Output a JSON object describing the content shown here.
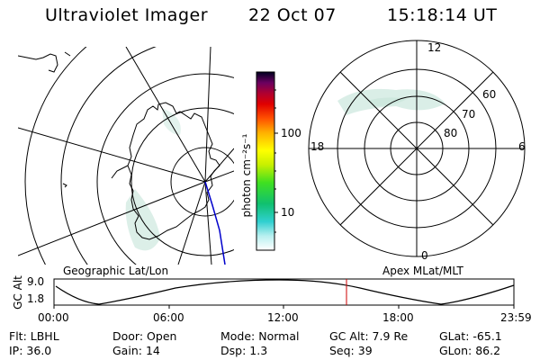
{
  "header": {
    "title": "Ultraviolet Imager",
    "date": "22 Oct 07",
    "time": "15:18:14 UT"
  },
  "colorbar": {
    "unit_label": "photon cm⁻²s⁻¹",
    "ticks": [
      "100",
      "10"
    ]
  },
  "geo_panel": {
    "label": "Geographic Lat/Lon"
  },
  "apex_panel": {
    "label": "Apex MLat/MLT",
    "mlt_labels": {
      "top": "12",
      "left": "18",
      "right": "6",
      "bottom": "0"
    },
    "lat_labels": [
      "60",
      "70",
      "80"
    ]
  },
  "timeline": {
    "ylabel": "GC Alt",
    "y_ticks": [
      "9.0",
      "1.8"
    ],
    "x_ticks": [
      "00:00",
      "06:00",
      "12:00",
      "18:00",
      "23:59"
    ],
    "marker_time": "15:18:14"
  },
  "footer": {
    "row1": [
      {
        "label": "Flt:",
        "value": "LBHL"
      },
      {
        "label": "Door:",
        "value": "Open"
      },
      {
        "label": "Mode:",
        "value": "Normal"
      },
      {
        "label": "GC Alt:",
        "value": "7.9 Re"
      },
      {
        "label": "GLat:",
        "value": "-65.1"
      }
    ],
    "row2": [
      {
        "label": "IP:",
        "value": "36.0"
      },
      {
        "label": "Gain:",
        "value": "14"
      },
      {
        "label": "Dsp:",
        "value": "1.3"
      },
      {
        "label": "Seq:",
        "value": "39"
      },
      {
        "label": "GLon:",
        "value": "86.2"
      }
    ]
  },
  "colors": {
    "marker": "#cc0000",
    "aurora": "#d6ece4",
    "track": "#0000cc"
  }
}
